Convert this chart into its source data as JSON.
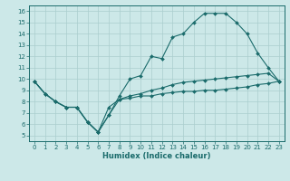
{
  "title": "",
  "xlabel": "Humidex (Indice chaleur)",
  "bg_color": "#cce8e8",
  "line_color": "#1a6b6b",
  "grid_color": "#aacece",
  "xlim": [
    -0.5,
    23.5
  ],
  "ylim": [
    4.5,
    16.5
  ],
  "xticks": [
    0,
    1,
    2,
    3,
    4,
    5,
    6,
    7,
    8,
    9,
    10,
    11,
    12,
    13,
    14,
    15,
    16,
    17,
    18,
    19,
    20,
    21,
    22,
    23
  ],
  "yticks": [
    5,
    6,
    7,
    8,
    9,
    10,
    11,
    12,
    13,
    14,
    15,
    16
  ],
  "line1_x": [
    0,
    1,
    2,
    3,
    4,
    5,
    6,
    7,
    8,
    9,
    10,
    11,
    12,
    13,
    14,
    15,
    16,
    17,
    18,
    19,
    20,
    21,
    22,
    23
  ],
  "line1_y": [
    9.8,
    8.7,
    8.0,
    7.5,
    7.5,
    6.2,
    5.3,
    6.8,
    8.5,
    10.0,
    10.3,
    12.0,
    11.8,
    13.7,
    14.0,
    15.0,
    15.8,
    15.8,
    15.8,
    15.0,
    14.0,
    12.3,
    11.0,
    9.8
  ],
  "line2_x": [
    0,
    1,
    2,
    3,
    4,
    5,
    6,
    7,
    8,
    9,
    10,
    11,
    12,
    13,
    14,
    15,
    16,
    17,
    18,
    19,
    20,
    21,
    22,
    23
  ],
  "line2_y": [
    9.8,
    8.7,
    8.0,
    7.5,
    7.5,
    6.2,
    5.3,
    7.5,
    8.2,
    8.5,
    8.7,
    9.0,
    9.2,
    9.5,
    9.7,
    9.8,
    9.9,
    10.0,
    10.1,
    10.2,
    10.3,
    10.4,
    10.5,
    9.8
  ],
  "line3_x": [
    0,
    1,
    2,
    3,
    4,
    5,
    6,
    7,
    8,
    9,
    10,
    11,
    12,
    13,
    14,
    15,
    16,
    17,
    18,
    19,
    20,
    21,
    22,
    23
  ],
  "line3_y": [
    9.8,
    8.7,
    8.0,
    7.5,
    7.5,
    6.2,
    5.3,
    6.8,
    8.2,
    8.3,
    8.5,
    8.5,
    8.7,
    8.8,
    8.9,
    8.9,
    9.0,
    9.0,
    9.1,
    9.2,
    9.3,
    9.5,
    9.6,
    9.8
  ]
}
